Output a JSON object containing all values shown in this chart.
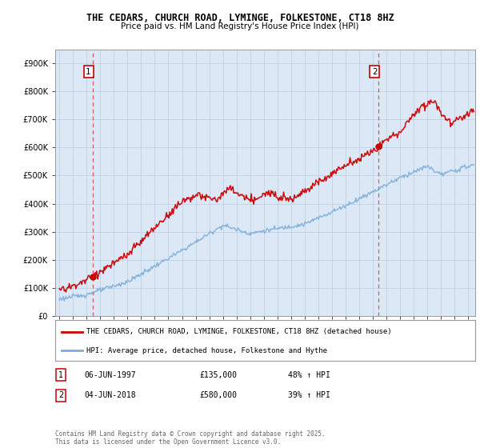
{
  "title": "THE CEDARS, CHURCH ROAD, LYMINGE, FOLKESTONE, CT18 8HZ",
  "subtitle": "Price paid vs. HM Land Registry's House Price Index (HPI)",
  "legend_line1": "THE CEDARS, CHURCH ROAD, LYMINGE, FOLKESTONE, CT18 8HZ (detached house)",
  "legend_line2": "HPI: Average price, detached house, Folkestone and Hythe",
  "transaction1_date": "06-JUN-1997",
  "transaction1_price": "£135,000",
  "transaction1_hpi": "48% ↑ HPI",
  "transaction2_date": "04-JUN-2018",
  "transaction2_price": "£580,000",
  "transaction2_hpi": "39% ↑ HPI",
  "footer": "Contains HM Land Registry data © Crown copyright and database right 2025.\nThis data is licensed under the Open Government Licence v3.0.",
  "red_color": "#cc0000",
  "blue_color": "#7aadda",
  "plot_bg": "#dce8f5",
  "grid_color": "#b0c8e0",
  "transaction1_x": 1997.44,
  "transaction2_x": 2018.42,
  "ylim": [
    0,
    950000
  ],
  "xlim_start": 1994.7,
  "xlim_end": 2025.5
}
